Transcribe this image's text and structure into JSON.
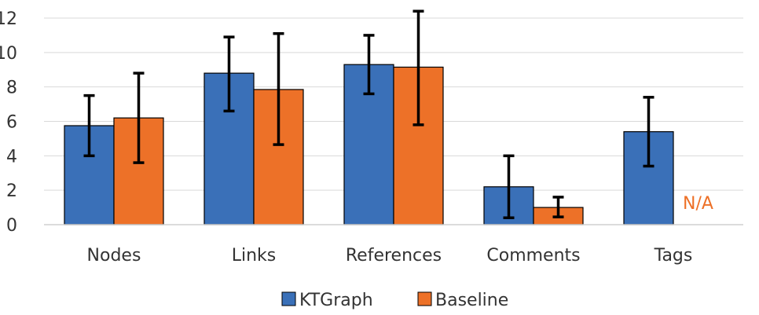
{
  "chart_data": {
    "type": "bar",
    "categories": [
      "Nodes",
      "Links",
      "References",
      "Comments",
      "Tags"
    ],
    "series": [
      {
        "name": "KTGraph",
        "color": "#3a70b8",
        "values": [
          5.75,
          8.8,
          9.3,
          2.2,
          5.4
        ],
        "error_low": [
          4.0,
          6.6,
          7.6,
          0.4,
          3.4
        ],
        "error_high": [
          7.5,
          10.9,
          11.0,
          4.0,
          7.4
        ]
      },
      {
        "name": "Baseline",
        "color": "#ed7128",
        "values": [
          6.2,
          7.85,
          9.15,
          1.0,
          null
        ],
        "error_low": [
          3.6,
          4.65,
          5.8,
          0.45,
          null
        ],
        "error_high": [
          8.8,
          11.1,
          12.4,
          1.6,
          null
        ]
      }
    ],
    "missing_label": "N/A",
    "yticks": [
      "0",
      "2",
      "4",
      "6",
      "8",
      "10",
      "12"
    ],
    "ylim": [
      0,
      12
    ],
    "grid": true,
    "legend_position": "bottom"
  }
}
